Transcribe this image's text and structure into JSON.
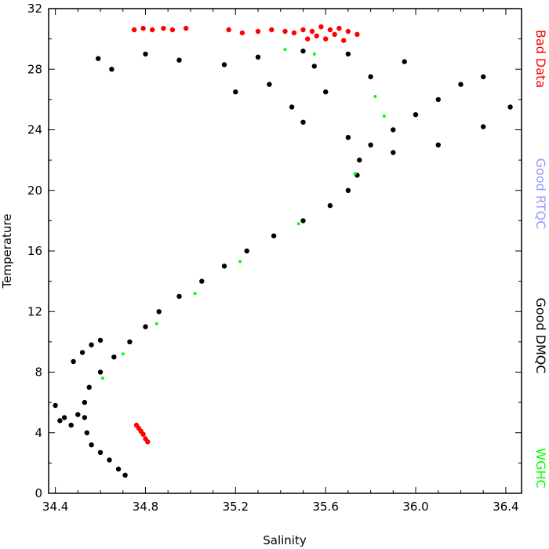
{
  "chart_data": {
    "type": "scatter",
    "xlabel": "Salinity",
    "ylabel": "Temperature",
    "xlim": [
      34.37,
      36.47
    ],
    "ylim": [
      0,
      32
    ],
    "x_ticks": [
      "34.4",
      "34.8",
      "35.2",
      "35.6",
      "36.0",
      "36.4"
    ],
    "x_tick_values": [
      34.4,
      34.8,
      35.2,
      35.6,
      36.0,
      36.4
    ],
    "y_ticks": [
      "0",
      "4",
      "8",
      "12",
      "16",
      "20",
      "24",
      "28",
      "32"
    ],
    "y_tick_values": [
      0,
      4,
      8,
      12,
      16,
      20,
      24,
      28,
      32
    ],
    "grid": false,
    "legend_placement": "right",
    "legend": [
      {
        "label": "Bad Data",
        "color": "#ff0000"
      },
      {
        "label": "Good RTQC",
        "color": "#9999ff"
      },
      {
        "label": "Good DMQC",
        "color": "#000000"
      },
      {
        "label": "WGHC",
        "color": "#00ff00"
      }
    ],
    "series": [
      {
        "name": "Bad Data",
        "color": "#ff0000",
        "points": [
          [
            34.75,
            30.6
          ],
          [
            34.79,
            30.7
          ],
          [
            34.83,
            30.6
          ],
          [
            34.88,
            30.7
          ],
          [
            34.92,
            30.6
          ],
          [
            34.98,
            30.7
          ],
          [
            35.17,
            30.6
          ],
          [
            35.23,
            30.4
          ],
          [
            35.3,
            30.5
          ],
          [
            35.36,
            30.6
          ],
          [
            35.42,
            30.5
          ],
          [
            35.46,
            30.4
          ],
          [
            35.5,
            30.6
          ],
          [
            35.54,
            30.5
          ],
          [
            35.58,
            30.8
          ],
          [
            35.62,
            30.6
          ],
          [
            35.66,
            30.7
          ],
          [
            35.7,
            30.5
          ],
          [
            35.74,
            30.3
          ],
          [
            35.56,
            30.2
          ],
          [
            35.6,
            30.0
          ],
          [
            35.64,
            30.3
          ],
          [
            35.68,
            29.9
          ],
          [
            35.52,
            30.0
          ],
          [
            34.76,
            4.5
          ],
          [
            34.77,
            4.3
          ],
          [
            34.78,
            4.1
          ],
          [
            34.79,
            3.9
          ],
          [
            34.8,
            3.6
          ],
          [
            34.81,
            3.4
          ]
        ]
      },
      {
        "name": "Good DMQC",
        "color": "#000000",
        "points": [
          [
            34.71,
            1.2
          ],
          [
            34.68,
            1.6
          ],
          [
            34.64,
            2.2
          ],
          [
            34.6,
            2.7
          ],
          [
            34.56,
            3.2
          ],
          [
            34.54,
            4.0
          ],
          [
            34.53,
            5.0
          ],
          [
            34.53,
            6.0
          ],
          [
            34.55,
            7.0
          ],
          [
            34.6,
            8.0
          ],
          [
            34.66,
            9.0
          ],
          [
            34.73,
            10.0
          ],
          [
            34.8,
            11.0
          ],
          [
            34.86,
            12.0
          ],
          [
            34.95,
            13.0
          ],
          [
            35.05,
            14.0
          ],
          [
            35.15,
            15.0
          ],
          [
            35.25,
            16.0
          ],
          [
            35.37,
            17.0
          ],
          [
            35.5,
            18.0
          ],
          [
            35.62,
            19.0
          ],
          [
            35.7,
            20.0
          ],
          [
            35.74,
            21.0
          ],
          [
            35.75,
            22.0
          ],
          [
            34.44,
            5.0
          ],
          [
            34.47,
            4.5
          ],
          [
            34.42,
            4.8
          ],
          [
            34.5,
            5.2
          ],
          [
            34.4,
            5.8
          ],
          [
            34.48,
            8.7
          ],
          [
            34.52,
            9.3
          ],
          [
            34.56,
            9.8
          ],
          [
            34.6,
            10.1
          ],
          [
            35.8,
            23.0
          ],
          [
            35.9,
            24.0
          ],
          [
            36.0,
            25.0
          ],
          [
            36.1,
            26.0
          ],
          [
            36.2,
            27.0
          ],
          [
            36.3,
            27.5
          ],
          [
            36.42,
            25.5
          ],
          [
            36.3,
            24.2
          ],
          [
            36.1,
            23.0
          ],
          [
            35.9,
            22.5
          ],
          [
            35.7,
            23.5
          ],
          [
            35.5,
            24.5
          ],
          [
            35.45,
            25.5
          ],
          [
            35.6,
            26.5
          ],
          [
            35.8,
            27.5
          ],
          [
            35.95,
            28.5
          ],
          [
            35.7,
            29.0
          ],
          [
            35.5,
            29.2
          ],
          [
            35.3,
            28.8
          ],
          [
            35.15,
            28.3
          ],
          [
            34.95,
            28.6
          ],
          [
            34.8,
            29.0
          ],
          [
            34.65,
            28.0
          ],
          [
            34.59,
            28.7
          ],
          [
            35.2,
            26.5
          ],
          [
            35.35,
            27.0
          ],
          [
            35.55,
            28.2
          ]
        ]
      },
      {
        "name": "WGHC",
        "color": "#00ff00",
        "points": [
          [
            34.61,
            7.6
          ],
          [
            34.7,
            9.2
          ],
          [
            34.85,
            11.2
          ],
          [
            35.02,
            13.2
          ],
          [
            35.22,
            15.3
          ],
          [
            35.48,
            17.8
          ],
          [
            35.73,
            21.1
          ],
          [
            35.86,
            24.9
          ],
          [
            35.82,
            26.2
          ],
          [
            35.55,
            29.0
          ],
          [
            35.42,
            29.3
          ]
        ]
      }
    ]
  }
}
